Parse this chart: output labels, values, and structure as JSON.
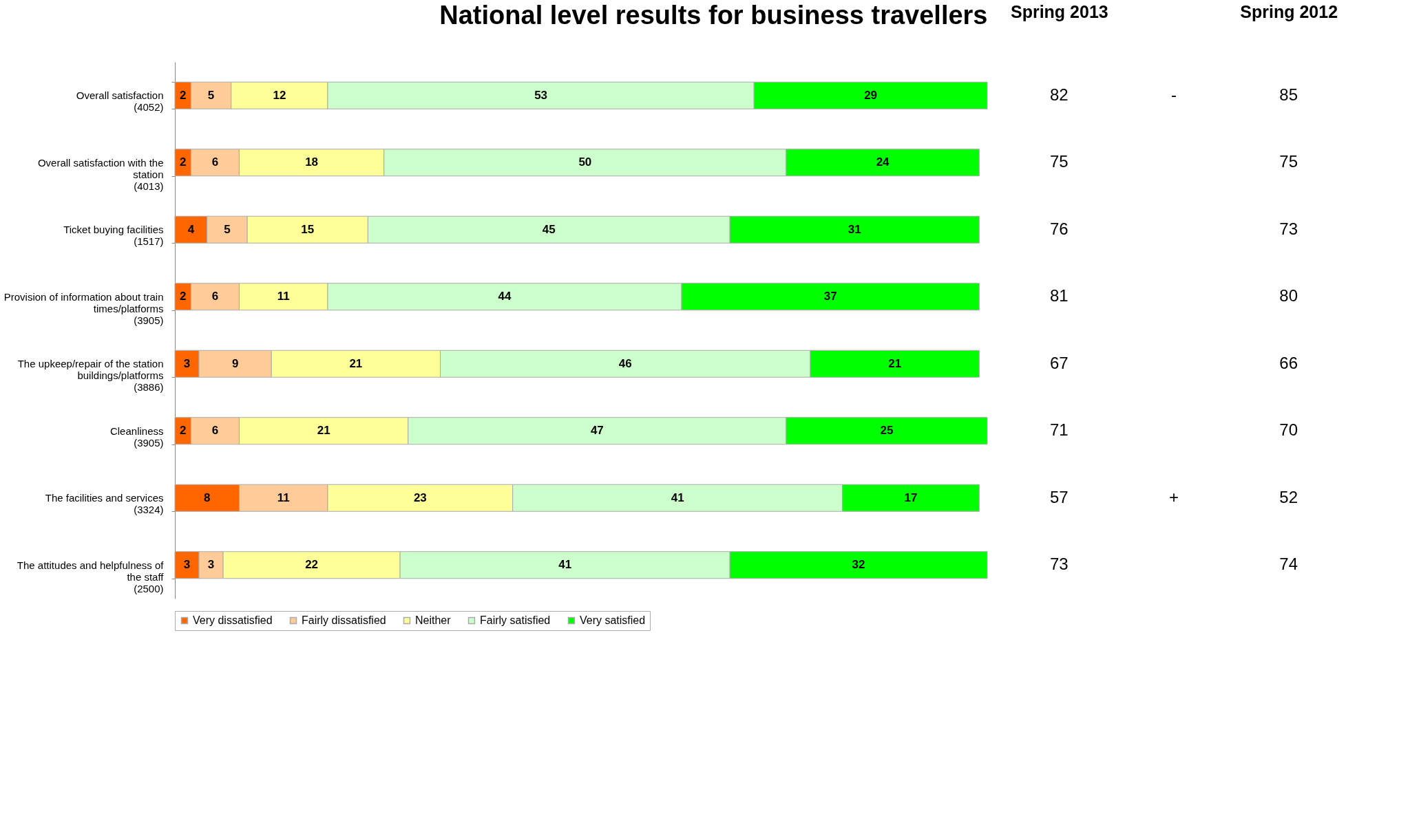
{
  "chart_data": [
    {
      "type": "bar",
      "orientation": "horizontal",
      "stacked": true,
      "title": "National level results for business travellers",
      "categories": [
        "Overall satisfaction\n(4052)",
        "Overall satisfaction  with the\nstation\n(4013)",
        "Ticket buying facilities\n(1517)",
        "Provision of information about train\ntimes/platforms\n(3905)",
        "The upkeep/repair of the station\nbuildings/platforms\n(3886)",
        "Cleanliness\n(3905)",
        "The facilities and services\n(3324)",
        "The attitudes and helpfulness of\nthe staff\n(2500)"
      ],
      "series": [
        {
          "name": "Very dissatisfied",
          "color": "#ff6600",
          "values": [
            2,
            2,
            4,
            2,
            3,
            2,
            8,
            3
          ]
        },
        {
          "name": "Fairly dissatisfied",
          "color": "#ffcc99",
          "values": [
            5,
            6,
            5,
            6,
            9,
            6,
            11,
            3
          ]
        },
        {
          "name": "Neither",
          "color": "#ffff99",
          "values": [
            12,
            18,
            15,
            11,
            21,
            21,
            23,
            22
          ]
        },
        {
          "name": "Fairly satisfied",
          "color": "#ccffcc",
          "values": [
            53,
            50,
            45,
            44,
            46,
            47,
            41,
            41
          ]
        },
        {
          "name": "Very satisfied",
          "color": "#00ff00",
          "values": [
            29,
            24,
            31,
            37,
            21,
            25,
            17,
            32
          ]
        }
      ],
      "data_labels": true,
      "legend": "bottom",
      "grid": false,
      "tick_labels": "y"
    },
    {
      "type": "other",
      "categories": [
        "Spring 2013",
        null,
        "Spring 2012"
      ],
      "cell_labels": [
        [
          "82",
          "-",
          "85"
        ],
        [
          "75",
          null,
          "75"
        ],
        [
          "76",
          null,
          "73"
        ],
        [
          "81",
          null,
          "80"
        ],
        [
          "67",
          null,
          "66"
        ],
        [
          "71",
          null,
          "70"
        ],
        [
          "57",
          "+",
          "52"
        ],
        [
          "73",
          null,
          "74"
        ]
      ]
    }
  ]
}
